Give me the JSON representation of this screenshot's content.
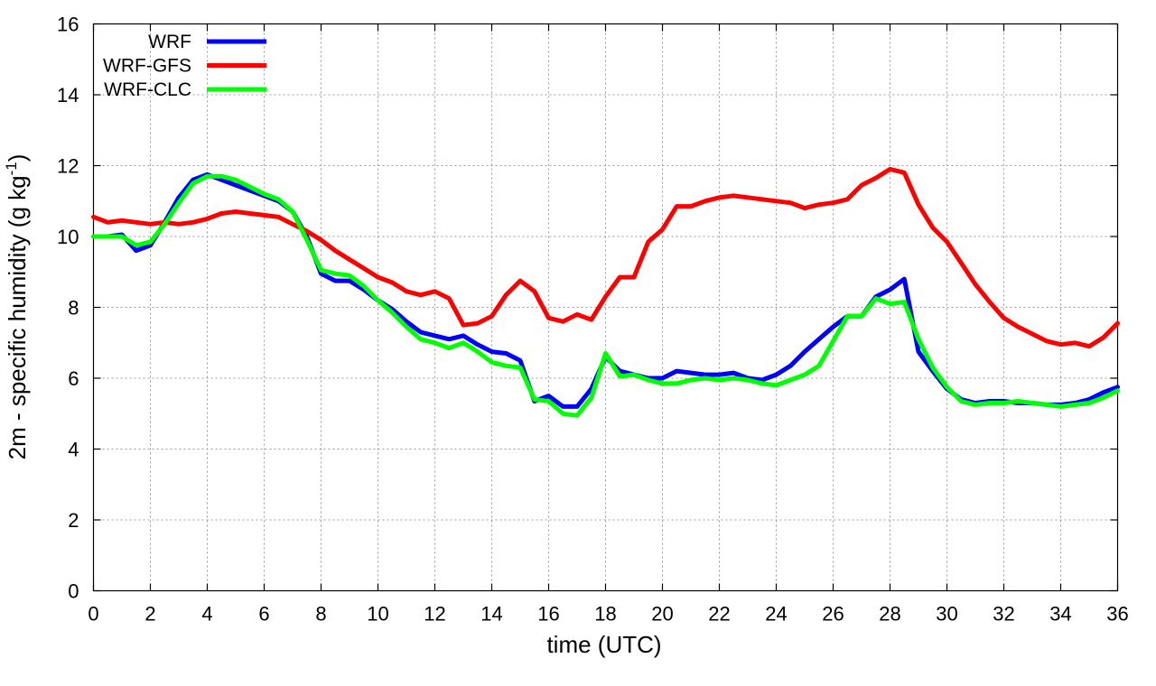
{
  "chart_data": {
    "type": "line",
    "xlabel": "time (UTC)",
    "ylabel_main": "2m - specific humidity (g kg",
    "ylabel_sup": "-1",
    "ylabel_close": ")",
    "xlim": [
      0,
      36
    ],
    "ylim": [
      0,
      16
    ],
    "xticks": [
      0,
      2,
      4,
      6,
      8,
      10,
      12,
      14,
      16,
      18,
      20,
      22,
      24,
      26,
      28,
      30,
      32,
      34,
      36
    ],
    "yticks": [
      0,
      2,
      4,
      6,
      8,
      10,
      12,
      14,
      16
    ],
    "xtick_labels": [
      "0",
      "2",
      "4",
      "6",
      "8",
      "10",
      "12",
      "14",
      "16",
      "18",
      "20",
      "22",
      "24",
      "26",
      "28",
      "30",
      "32",
      "34",
      "36"
    ],
    "ytick_labels": [
      "0",
      "2",
      "4",
      "6",
      "8",
      "10",
      "12",
      "14",
      "16"
    ],
    "grid": true,
    "legend_position": "top-left",
    "series": [
      {
        "name": "WRF",
        "color": "#0000ff",
        "x": [
          0,
          0.5,
          1,
          1.5,
          2,
          2.5,
          3,
          3.5,
          4,
          4.5,
          5,
          5.5,
          6,
          6.5,
          7,
          7.5,
          8,
          8.5,
          9,
          9.5,
          10,
          10.5,
          11,
          11.5,
          12,
          12.5,
          13,
          13.5,
          14,
          14.5,
          15,
          15.5,
          16,
          16.5,
          17,
          17.5,
          18,
          18.5,
          19,
          19.5,
          20,
          20.5,
          21,
          21.5,
          22,
          22.5,
          23,
          23.5,
          24,
          24.5,
          25,
          25.5,
          26,
          26.5,
          27,
          27.5,
          28,
          28.5,
          29,
          29.5,
          30,
          30.5,
          31,
          31.5,
          32,
          32.5,
          33,
          33.5,
          34,
          34.5,
          35,
          35.5,
          36
        ],
        "y": [
          10.0,
          10.0,
          10.05,
          9.6,
          9.75,
          10.4,
          11.1,
          11.6,
          11.75,
          11.6,
          11.45,
          11.3,
          11.15,
          11.0,
          10.7,
          10.0,
          8.95,
          8.75,
          8.75,
          8.5,
          8.2,
          7.95,
          7.6,
          7.3,
          7.2,
          7.1,
          7.2,
          6.95,
          6.75,
          6.7,
          6.5,
          5.35,
          5.5,
          5.2,
          5.2,
          5.7,
          6.6,
          6.2,
          6.1,
          6.0,
          6.0,
          6.2,
          6.15,
          6.1,
          6.1,
          6.15,
          6.0,
          5.95,
          6.1,
          6.35,
          6.75,
          7.1,
          7.45,
          7.75,
          7.75,
          8.3,
          8.5,
          8.8,
          6.75,
          6.2,
          5.7,
          5.4,
          5.3,
          5.35,
          5.35,
          5.3,
          5.3,
          5.25,
          5.25,
          5.3,
          5.4,
          5.6,
          5.75
        ]
      },
      {
        "name": "WRF-GFS",
        "color": "#ff0000",
        "x": [
          0,
          0.5,
          1,
          1.5,
          2,
          2.5,
          3,
          3.5,
          4,
          4.5,
          5,
          5.5,
          6,
          6.5,
          7,
          7.5,
          8,
          8.5,
          9,
          9.5,
          10,
          10.5,
          11,
          11.5,
          12,
          12.5,
          13,
          13.5,
          14,
          14.5,
          15,
          15.5,
          16,
          16.5,
          17,
          17.5,
          18,
          18.5,
          19,
          19.5,
          20,
          20.5,
          21,
          21.5,
          22,
          22.5,
          23,
          23.5,
          24,
          24.5,
          25,
          25.5,
          26,
          26.5,
          27,
          27.5,
          28,
          28.5,
          29,
          29.5,
          30,
          30.5,
          31,
          31.5,
          32,
          32.5,
          33,
          33.5,
          34,
          34.5,
          35,
          35.5,
          36
        ],
        "y": [
          10.55,
          10.4,
          10.45,
          10.4,
          10.35,
          10.4,
          10.35,
          10.4,
          10.5,
          10.65,
          10.7,
          10.65,
          10.6,
          10.55,
          10.35,
          10.15,
          9.9,
          9.6,
          9.35,
          9.1,
          8.85,
          8.7,
          8.45,
          8.35,
          8.45,
          8.25,
          7.5,
          7.55,
          7.75,
          8.35,
          8.75,
          8.45,
          7.7,
          7.6,
          7.8,
          7.65,
          8.3,
          8.85,
          8.85,
          9.85,
          10.2,
          10.85,
          10.85,
          11.0,
          11.1,
          11.15,
          11.1,
          11.05,
          11.0,
          10.95,
          10.8,
          10.9,
          10.95,
          11.05,
          11.45,
          11.65,
          11.9,
          11.8,
          10.9,
          10.25,
          9.85,
          9.25,
          8.65,
          8.15,
          7.7,
          7.45,
          7.25,
          7.05,
          6.95,
          7.0,
          6.9,
          7.15,
          7.55
        ]
      },
      {
        "name": "WRF-CLC",
        "color": "#00ff00",
        "x": [
          0,
          0.5,
          1,
          1.5,
          2,
          2.5,
          3,
          3.5,
          4,
          4.5,
          5,
          5.5,
          6,
          6.5,
          7,
          7.5,
          8,
          8.5,
          9,
          9.5,
          10,
          10.5,
          11,
          11.5,
          12,
          12.5,
          13,
          13.5,
          14,
          14.5,
          15,
          15.5,
          16,
          16.5,
          17,
          17.5,
          18,
          18.5,
          19,
          19.5,
          20,
          20.5,
          21,
          21.5,
          22,
          22.5,
          23,
          23.5,
          24,
          24.5,
          25,
          25.5,
          26,
          26.5,
          27,
          27.5,
          28,
          28.5,
          29,
          29.5,
          30,
          30.5,
          31,
          31.5,
          32,
          32.5,
          33,
          33.5,
          34,
          34.5,
          35,
          35.5,
          36
        ],
        "y": [
          10.0,
          10.0,
          10.0,
          9.75,
          9.85,
          10.35,
          10.95,
          11.5,
          11.7,
          11.7,
          11.6,
          11.4,
          11.2,
          11.05,
          10.7,
          9.9,
          9.05,
          8.95,
          8.9,
          8.6,
          8.2,
          7.85,
          7.45,
          7.1,
          7.0,
          6.85,
          7.0,
          6.75,
          6.45,
          6.35,
          6.3,
          5.4,
          5.35,
          5.0,
          4.95,
          5.45,
          6.7,
          6.05,
          6.1,
          5.95,
          5.85,
          5.85,
          5.95,
          6.0,
          5.95,
          6.0,
          5.95,
          5.85,
          5.8,
          5.95,
          6.1,
          6.35,
          7.05,
          7.75,
          7.75,
          8.25,
          8.1,
          8.15,
          7.1,
          6.3,
          5.75,
          5.35,
          5.25,
          5.3,
          5.3,
          5.35,
          5.3,
          5.25,
          5.2,
          5.25,
          5.3,
          5.45,
          5.65
        ]
      }
    ]
  }
}
